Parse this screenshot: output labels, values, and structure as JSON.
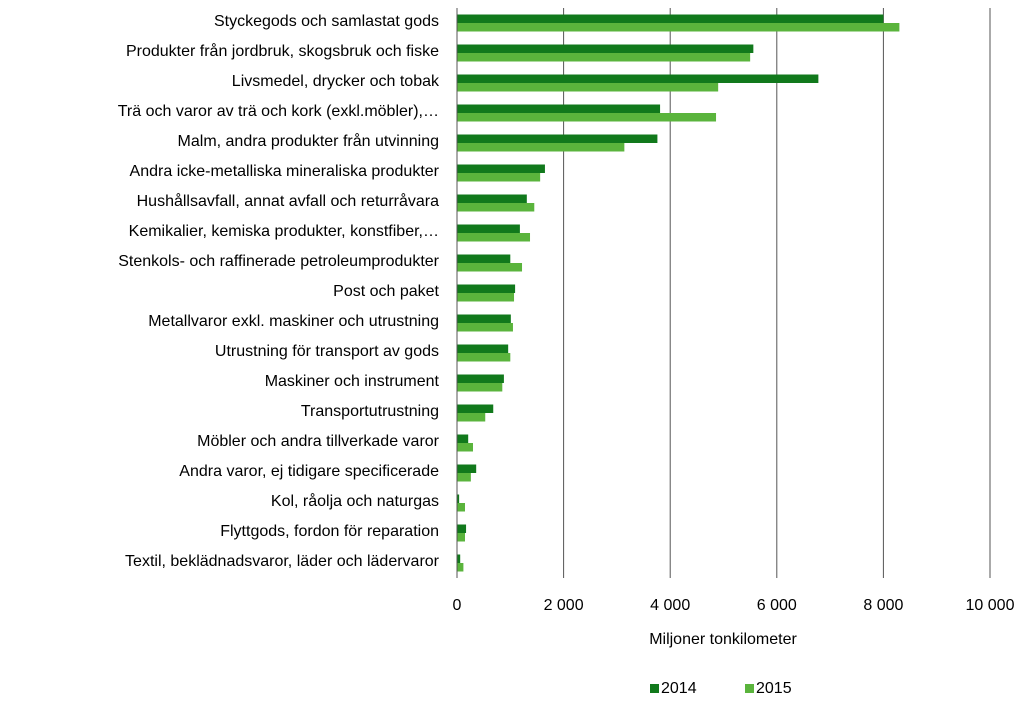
{
  "chart_data": {
    "type": "bar",
    "orientation": "horizontal",
    "xlabel": "Miljoner tonkilometer",
    "categories": [
      "Styckegods och samlastat gods",
      "Produkter från jordbruk, skogsbruk och fiske",
      "Livsmedel, drycker och tobak",
      "Trä och varor av trä och kork (exkl.möbler),…",
      "Malm, andra produkter från utvinning",
      "Andra icke-metalliska mineraliska produkter",
      "Hushållsavfall, annat avfall och returråvara",
      "Kemikalier, kemiska produkter, konstfiber,…",
      "Stenkols- och raffinerade petroleumprodukter",
      "Post och paket",
      "Metallvaror exkl. maskiner och utrustning",
      "Utrustning för transport av gods",
      "Maskiner och instrument",
      "Transportutrustning",
      "Möbler och andra tillverkade varor",
      "Andra varor, ej tidigare specificerade",
      "Kol, råolja och naturgas",
      "Flyttgods, fordon för reparation",
      "Textil, beklädnadsvaror, läder och lädervaror"
    ],
    "series": [
      {
        "name": "2014",
        "color": "#11791c",
        "values": [
          8000,
          5560,
          6780,
          3810,
          3760,
          1650,
          1310,
          1180,
          1000,
          1090,
          1010,
          960,
          880,
          680,
          210,
          360,
          40,
          170,
          60
        ]
      },
      {
        "name": "2015",
        "color": "#5ab43c",
        "values": [
          8300,
          5500,
          4900,
          4860,
          3140,
          1560,
          1450,
          1370,
          1220,
          1070,
          1050,
          1000,
          850,
          530,
          300,
          260,
          150,
          150,
          120
        ]
      }
    ],
    "xlim": [
      0,
      10000
    ],
    "xticks": [
      0,
      {
        "value": 2000,
        "label": "2 000"
      },
      {
        "value": 4000,
        "label": "4 000"
      },
      {
        "value": 6000,
        "label": "6 000"
      },
      {
        "value": 8000,
        "label": "8 000"
      },
      {
        "value": 10000,
        "label": "10 000"
      }
    ],
    "grid": true,
    "legend": "bottom"
  }
}
